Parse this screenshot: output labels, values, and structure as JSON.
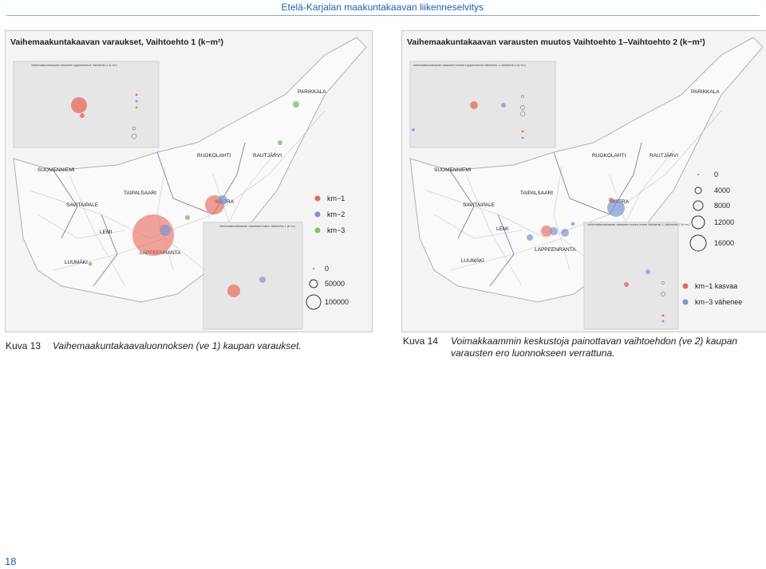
{
  "header": {
    "title": "Etelä-Karjalan maakuntakaavan liikenneselvitys"
  },
  "figure13": {
    "title": "Vaihemaakuntakaavan varaukset, Vaihtoehto 1 (k−m²)",
    "inset_top_title": "Vaihemaakuntakaavan varaukset Lappeenranna, Vaihtoehto 1 (k−m²)",
    "inset_bottom_title": "Vaihemaakuntakaavan varaukset Imatra, Vaihtoehto 1 (k−m²)",
    "places": {
      "parikkala": "PARIKKALA",
      "ruokolahti": "RUOKOLAHTI",
      "rautjarvi": "RAUTJÄRVI",
      "suomenniemi": "SUOMENNIEMI",
      "taipalsaari": "TAIPALSAARI",
      "savitaipale": "SAVITAIPALE",
      "imatra": "IMATRA",
      "lemi": "LEMI",
      "lappeenranta": "LAPPEENRANTA",
      "luumaki": "LUUMÄKI"
    },
    "legend": {
      "km1": "km−1",
      "km2": "km−2",
      "km3": "km−3",
      "s0": "0",
      "s1": "50000",
      "s2": "100000"
    },
    "caption_label": "Kuva 13",
    "caption_text": "Vaihemaakuntakaavaluonnoksen (ve 1) kaupan varaukset."
  },
  "figure14": {
    "title": "Vaihemaakuntakaavan varausten muutos Vaihtoehto 1–Vaihtoehto 2 (k−m²)",
    "inset_top_title": "Vaihemaakuntakaavan varausten muutos Lappeenranna Vaihtoehto 1–Vaihtoehto 2 (k−m²)",
    "inset_bottom_title": "Vaihemaakuntakaavan varausten muutos Imatra Vaihtoehto 1–Vaihtoehto 2 (k−m²)",
    "places": {
      "parikkala": "PARIKKALA",
      "ruokolahti": "RUOKOLAHTI",
      "rautjarvi": "RAUTJÄRVI",
      "suomenniemi": "SUOMENNIEMI",
      "taipalsaari": "TAIPALSAARI",
      "savitaipale": "SAVITAIPALE",
      "imatra": "IMATRA",
      "lemi": "LEMI",
      "lappeenranta": "LAPPEENRANTA",
      "luumaki": "LUUMÄKI"
    },
    "legend": {
      "s0": "0",
      "s1": "4000",
      "s2": "8000",
      "s3": "12000",
      "s4": "16000",
      "inc": "km−1 kasvaa",
      "dec": "km−3 vähenee"
    },
    "caption_label": "Kuva 14",
    "caption_text": "Voimakkaammin keskustoja painottavan vaihtoehdon (ve 2) kaupan varausten ero luonnokseen verrattuna."
  },
  "colors": {
    "km1": "#e8685a",
    "km2": "#7a95d0",
    "km3": "#7cc36a",
    "border": "#9a7fb8",
    "header": "#1f5fa8"
  },
  "page_number": "18"
}
